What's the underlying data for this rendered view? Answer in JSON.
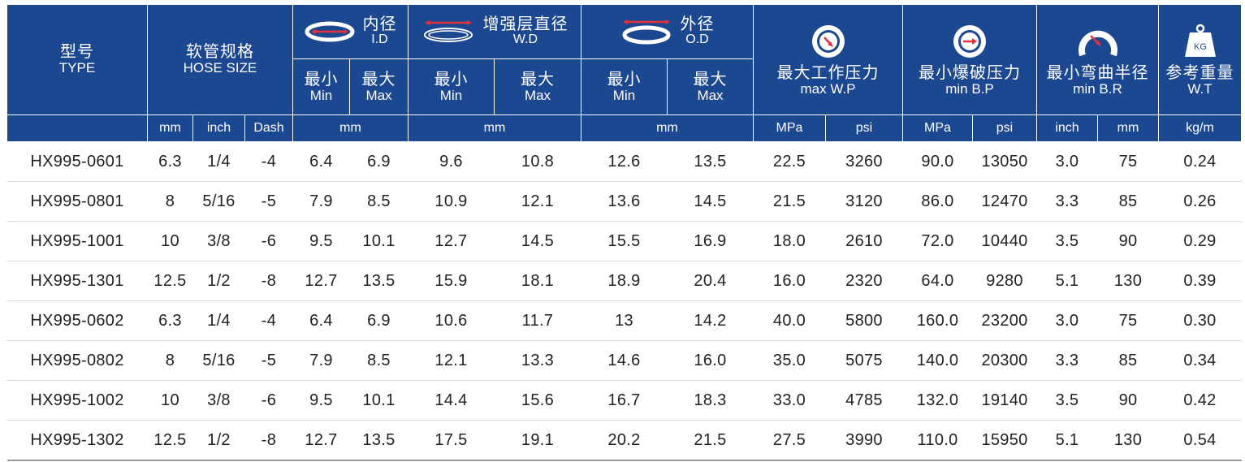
{
  "header": {
    "type": {
      "zh": "型号",
      "en": "TYPE"
    },
    "hose_size": {
      "zh": "软管规格",
      "en": "HOSE SIZE"
    },
    "id": {
      "zh": "内径",
      "en": "I.D"
    },
    "wd": {
      "zh": "增强层直径",
      "en": "W.D"
    },
    "od": {
      "zh": "外径",
      "en": "O.D"
    },
    "wp": {
      "zh": "最大工作压力",
      "en": "max W.P"
    },
    "bp": {
      "zh": "最小爆破压力",
      "en": "min B.P"
    },
    "br": {
      "zh": "最小弯曲半径",
      "en": "min B.R"
    },
    "wt": {
      "zh": "参考重量",
      "en": "W.T"
    },
    "min": {
      "zh": "最小",
      "en": "Min"
    },
    "max": {
      "zh": "最大",
      "en": "Max"
    },
    "kg_icon_label": "KG",
    "icons": [
      "inner-diameter-icon",
      "reinforcement-diameter-icon",
      "outer-diameter-icon",
      "pressure-gauge-icon",
      "burst-gauge-icon",
      "bend-radius-icon",
      "weight-icon"
    ]
  },
  "units": {
    "mm": "mm",
    "inch": "inch",
    "dash": "Dash",
    "id_mm": "mm",
    "wd_mm": "mm",
    "od_mm": "mm",
    "wp_mpa": "MPa",
    "wp_psi": "psi",
    "bp_mpa": "MPa",
    "bp_psi": "psi",
    "br_inch": "inch",
    "br_mm": "mm",
    "wt_kgm": "kg/m"
  },
  "rows": [
    [
      "HX995-0601",
      "6.3",
      "1/4",
      "-4",
      "6.4",
      "6.9",
      "9.6",
      "10.8",
      "12.6",
      "13.5",
      "22.5",
      "3260",
      "90.0",
      "13050",
      "3.0",
      "75",
      "0.24"
    ],
    [
      "HX995-0801",
      "8",
      "5/16",
      "-5",
      "7.9",
      "8.5",
      "10.9",
      "12.1",
      "13.6",
      "14.5",
      "21.5",
      "3120",
      "86.0",
      "12470",
      "3.3",
      "85",
      "0.26"
    ],
    [
      "HX995-1001",
      "10",
      "3/8",
      "-6",
      "9.5",
      "10.1",
      "12.7",
      "14.5",
      "15.5",
      "16.9",
      "18.0",
      "2610",
      "72.0",
      "10440",
      "3.5",
      "90",
      "0.29"
    ],
    [
      "HX995-1301",
      "12.5",
      "1/2",
      "-8",
      "12.7",
      "13.5",
      "15.9",
      "18.1",
      "18.9",
      "20.4",
      "16.0",
      "2320",
      "64.0",
      "9280",
      "5.1",
      "130",
      "0.39"
    ],
    [
      "HX995-0602",
      "6.3",
      "1/4",
      "-4",
      "6.4",
      "6.9",
      "10.6",
      "11.7",
      "13",
      "14.2",
      "40.0",
      "5800",
      "160.0",
      "23200",
      "3.0",
      "75",
      "0.30"
    ],
    [
      "HX995-0802",
      "8",
      "5/16",
      "-5",
      "7.9",
      "8.5",
      "12.1",
      "13.3",
      "14.6",
      "16.0",
      "35.0",
      "5075",
      "140.0",
      "20300",
      "3.3",
      "85",
      "0.34"
    ],
    [
      "HX995-1002",
      "10",
      "3/8",
      "-6",
      "9.5",
      "10.1",
      "14.4",
      "15.6",
      "16.7",
      "18.3",
      "33.0",
      "4785",
      "132.0",
      "19140",
      "3.5",
      "90",
      "0.42"
    ],
    [
      "HX995-1302",
      "12.5",
      "1/2",
      "-8",
      "12.7",
      "13.5",
      "17.5",
      "19.1",
      "20.2",
      "21.5",
      "27.5",
      "3990",
      "110.0",
      "15950",
      "5.1",
      "130",
      "0.54"
    ]
  ]
}
